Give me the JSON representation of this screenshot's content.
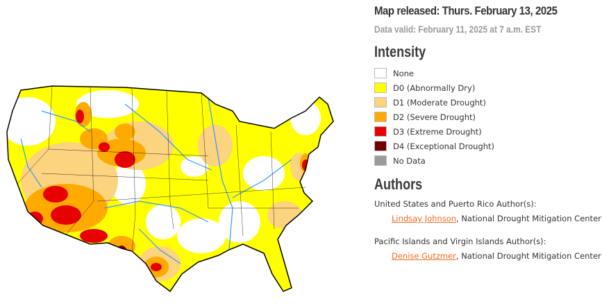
{
  "header": {
    "released": "Map released: Thurs. February 13, 2025",
    "valid": "Data valid: February 11, 2025 at 7 a.m. EST"
  },
  "legend": {
    "title": "Intensity",
    "items": [
      {
        "label": "None",
        "color": "#ffffff"
      },
      {
        "label": "D0 (Abnormally Dry)",
        "color": "#ffff00"
      },
      {
        "label": "D1 (Moderate Drought)",
        "color": "#fcd37f"
      },
      {
        "label": "D2 (Severe Drought)",
        "color": "#ffaa00"
      },
      {
        "label": "D3 (Extreme Drought)",
        "color": "#e60000"
      },
      {
        "label": "D4 (Exceptional Drought)",
        "color": "#730000"
      },
      {
        "label": "No Data",
        "color": "#9b9b9b"
      }
    ]
  },
  "authors": {
    "title": "Authors",
    "groups": [
      {
        "heading": "United States and Puerto Rico Author(s):",
        "name": "Lindsay Johnson",
        "org": ", National Drought Mitigation Center"
      },
      {
        "heading": "Pacific Islands and Virgin Islands Author(s):",
        "name": "Denise Gutzmer",
        "org": ", National Drought Mitigation Center"
      }
    ]
  },
  "map": {
    "water_color": "#3399ff",
    "border_color": "#000000"
  }
}
